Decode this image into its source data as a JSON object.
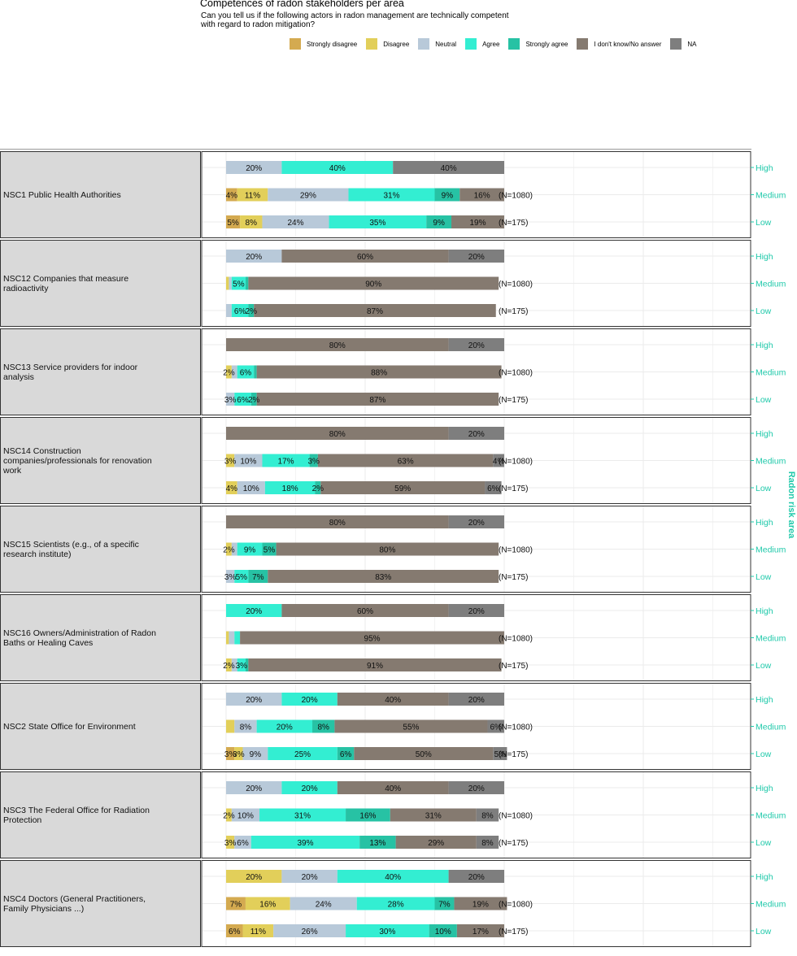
{
  "title": "Competences of radon stakeholders per area",
  "subtitle_lines": [
    "Can you tell us if the following actors in radon management are technically competent",
    "with regard to radon mitigation?"
  ],
  "legend": [
    {
      "label": "Strongly disagree",
      "color": "#d4aa50"
    },
    {
      "label": "Disagree",
      "color": "#e2cf5a"
    },
    {
      "label": "Neutral",
      "color": "#b8c9d9"
    },
    {
      "label": "Agree",
      "color": "#33eed2"
    },
    {
      "label": "Strongly agree",
      "color": "#27c2a4"
    },
    {
      "label": "I don't know/No answer",
      "color": "#857a70"
    },
    {
      "label": "NA",
      "color": "#7e7e7e"
    }
  ],
  "colors": {
    "axis_label": "#1fc9aa",
    "panel_bg": "#d9d9d9",
    "grid": "#ebebeb"
  },
  "chart_data": {
    "type": "bar",
    "orientation": "horizontal",
    "stacked": true,
    "title": "Competences of radon stakeholders per area",
    "y_axis_title": "Radon risk area",
    "series_names": [
      "Strongly disagree",
      "Disagree",
      "Neutral",
      "Agree",
      "Strongly agree",
      "I don't know/No answer",
      "NA"
    ],
    "panels": [
      {
        "label": "NSC1 Public Health Authorities",
        "rows": [
          {
            "area": "High",
            "n": "",
            "values": [
              0,
              0,
              20,
              40,
              0,
              0,
              40
            ],
            "labels": [
              "",
              "",
              "20%",
              "40%",
              "",
              "",
              "40%"
            ]
          },
          {
            "area": "Medium",
            "n": "(N=1080)",
            "values": [
              4,
              11,
              29,
              31,
              9,
              16,
              0
            ],
            "labels": [
              "4%",
              "11%",
              "29%",
              "31%",
              "9%",
              "16%",
              ""
            ]
          },
          {
            "area": "Low",
            "n": "(N=175)",
            "values": [
              5,
              8,
              24,
              35,
              9,
              19,
              0
            ],
            "labels": [
              "5%",
              "8%",
              "24%",
              "35%",
              "9%",
              "19%",
              ""
            ]
          }
        ]
      },
      {
        "label": "NSC12 Companies that measure radioactivity",
        "rows": [
          {
            "area": "High",
            "n": "",
            "values": [
              0,
              0,
              20,
              0,
              0,
              60,
              20
            ],
            "labels": [
              "",
              "",
              "20%",
              "",
              "",
              "60%",
              "20%"
            ]
          },
          {
            "area": "Medium",
            "n": "(N=1080)",
            "values": [
              0,
              1,
              1,
              5,
              1,
              90,
              0
            ],
            "labels": [
              "",
              "",
              "",
              "5%",
              "",
              "90%",
              ""
            ]
          },
          {
            "area": "Low",
            "n": "(N=175)",
            "values": [
              0,
              0,
              2,
              6,
              2,
              87,
              0
            ],
            "labels": [
              "",
              "",
              "",
              "6%",
              "2%",
              "87%",
              ""
            ]
          }
        ]
      },
      {
        "label": "NSC13 Service providers for indoor analysis",
        "rows": [
          {
            "area": "High",
            "n": "",
            "values": [
              0,
              0,
              0,
              0,
              0,
              80,
              20
            ],
            "labels": [
              "",
              "",
              "",
              "",
              "",
              "80%",
              "20%"
            ]
          },
          {
            "area": "Medium",
            "n": "(N=1080)",
            "values": [
              0,
              2,
              2,
              6,
              1,
              88,
              0
            ],
            "labels": [
              "",
              "2%",
              "",
              "6%",
              "",
              "88%",
              ""
            ]
          },
          {
            "area": "Low",
            "n": "(N=175)",
            "values": [
              0,
              0,
              3,
              6,
              2,
              87,
              0
            ],
            "labels": [
              "",
              "",
              "3%",
              "6%",
              "2%",
              "87%",
              ""
            ]
          }
        ]
      },
      {
        "label": "NSC14 Construction companies/professionals for renovation work",
        "rows": [
          {
            "area": "High",
            "n": "",
            "values": [
              0,
              0,
              0,
              0,
              0,
              80,
              20
            ],
            "labels": [
              "",
              "",
              "",
              "",
              "",
              "80%",
              "20%"
            ]
          },
          {
            "area": "Medium",
            "n": "(N=1080)",
            "values": [
              0,
              3,
              10,
              17,
              3,
              63,
              4
            ],
            "labels": [
              "",
              "3%",
              "10%",
              "17%",
              "3%",
              "63%",
              "4%"
            ]
          },
          {
            "area": "Low",
            "n": "(N=175)",
            "values": [
              0,
              4,
              10,
              18,
              2,
              59,
              6
            ],
            "labels": [
              "",
              "4%",
              "10%",
              "18%",
              "2%",
              "59%",
              "6%"
            ]
          }
        ]
      },
      {
        "label": "NSC15 Scientists (e.g., of a specific research institute)",
        "rows": [
          {
            "area": "High",
            "n": "",
            "values": [
              0,
              0,
              0,
              0,
              0,
              80,
              20
            ],
            "labels": [
              "",
              "",
              "",
              "",
              "",
              "80%",
              "20%"
            ]
          },
          {
            "area": "Medium",
            "n": "(N=1080)",
            "values": [
              0,
              2,
              2,
              9,
              5,
              80,
              0
            ],
            "labels": [
              "",
              "2%",
              "",
              "9%",
              "5%",
              "80%",
              ""
            ]
          },
          {
            "area": "Low",
            "n": "(N=175)",
            "values": [
              0,
              0,
              3,
              5,
              7,
              83,
              0
            ],
            "labels": [
              "",
              "",
              "3%",
              "5%",
              "7%",
              "83%",
              ""
            ]
          }
        ]
      },
      {
        "label": "NSC16 Owners/Administration of Radon Baths or Healing Caves",
        "rows": [
          {
            "area": "High",
            "n": "",
            "values": [
              0,
              0,
              0,
              20,
              0,
              60,
              20
            ],
            "labels": [
              "",
              "",
              "",
              "20%",
              "",
              "60%",
              "20%"
            ]
          },
          {
            "area": "Medium",
            "n": "(N=1080)",
            "values": [
              0,
              1,
              2,
              2,
              0,
              95,
              0
            ],
            "labels": [
              "",
              "",
              "",
              "",
              "",
              "95%",
              ""
            ]
          },
          {
            "area": "Low",
            "n": "(N=175)",
            "values": [
              0,
              2,
              2,
              3,
              1,
              91,
              0
            ],
            "labels": [
              "",
              "2%",
              "",
              "3%",
              "",
              "91%",
              ""
            ]
          }
        ]
      },
      {
        "label": "NSC2 State Office for Environment",
        "rows": [
          {
            "area": "High",
            "n": "",
            "values": [
              0,
              0,
              20,
              20,
              0,
              40,
              20
            ],
            "labels": [
              "",
              "",
              "20%",
              "20%",
              "",
              "40%",
              "20%"
            ]
          },
          {
            "area": "Medium",
            "n": "(N=1080)",
            "values": [
              0,
              3,
              8,
              20,
              8,
              55,
              6
            ],
            "labels": [
              "",
              "",
              "8%",
              "20%",
              "8%",
              "55%",
              "6%"
            ]
          },
          {
            "area": "Low",
            "n": "(N=175)",
            "values": [
              3,
              3,
              9,
              25,
              6,
              50,
              5
            ],
            "labels": [
              "3%",
              "3%",
              "9%",
              "25%",
              "6%",
              "50%",
              "5%"
            ]
          }
        ]
      },
      {
        "label": "NSC3 The Federal Office for Radiation Protection",
        "rows": [
          {
            "area": "High",
            "n": "",
            "values": [
              0,
              0,
              20,
              20,
              0,
              40,
              20
            ],
            "labels": [
              "",
              "",
              "20%",
              "20%",
              "",
              "40%",
              "20%"
            ]
          },
          {
            "area": "Medium",
            "n": "(N=1080)",
            "values": [
              0,
              2,
              10,
              31,
              16,
              31,
              8
            ],
            "labels": [
              "",
              "2%",
              "10%",
              "31%",
              "16%",
              "31%",
              "8%"
            ]
          },
          {
            "area": "Low",
            "n": "(N=175)",
            "values": [
              0,
              3,
              6,
              39,
              13,
              29,
              8
            ],
            "labels": [
              "",
              "3%",
              "6%",
              "39%",
              "13%",
              "29%",
              "8%"
            ]
          }
        ]
      },
      {
        "label": "NSC4 Doctors (General Practitioners, Family Physicians ...)",
        "rows": [
          {
            "area": "High",
            "n": "",
            "values": [
              0,
              20,
              20,
              40,
              0,
              0,
              20
            ],
            "labels": [
              "",
              "20%",
              "20%",
              "40%",
              "",
              "",
              "20%"
            ]
          },
          {
            "area": "Medium",
            "n": "(N=1080)",
            "values": [
              7,
              16,
              24,
              28,
              7,
              19,
              0
            ],
            "labels": [
              "7%",
              "16%",
              "24%",
              "28%",
              "7%",
              "19%",
              ""
            ]
          },
          {
            "area": "Low",
            "n": "(N=175)",
            "values": [
              6,
              11,
              26,
              30,
              10,
              17,
              0
            ],
            "labels": [
              "6%",
              "11%",
              "26%",
              "30%",
              "10%",
              "17%",
              ""
            ]
          }
        ]
      }
    ]
  }
}
